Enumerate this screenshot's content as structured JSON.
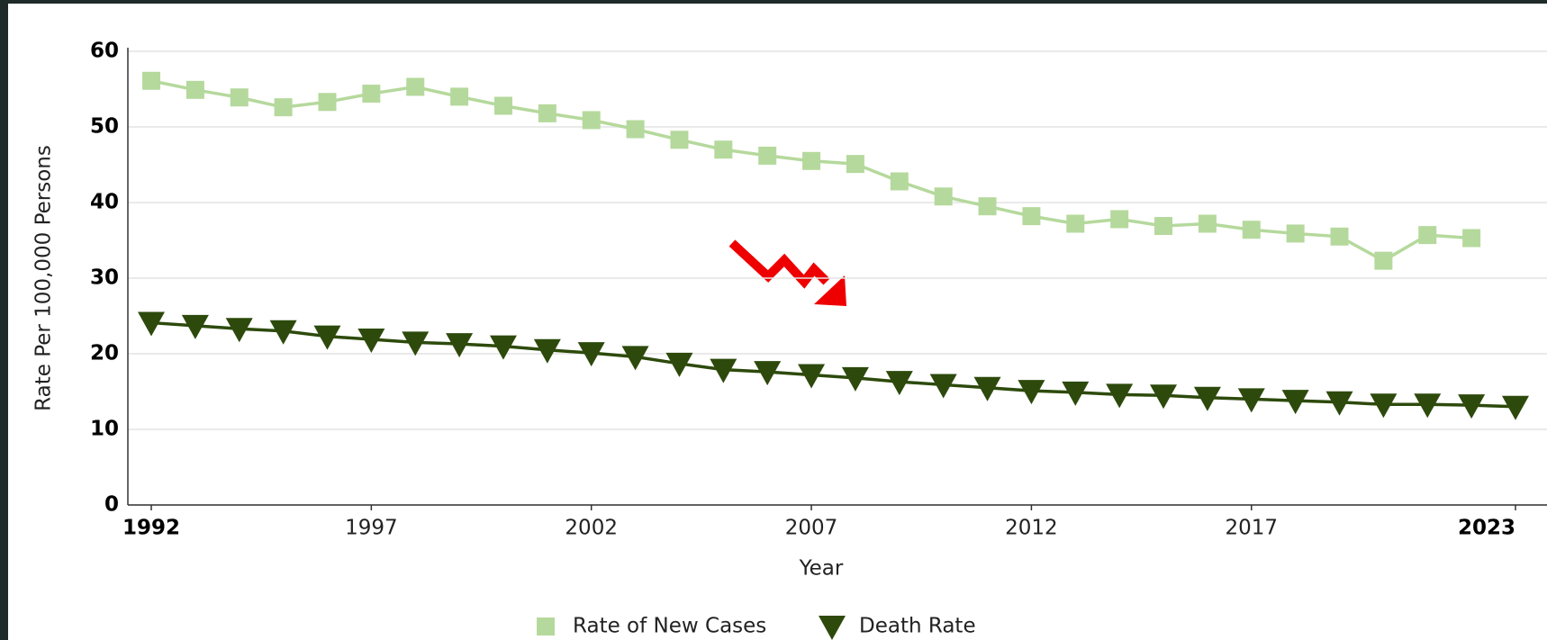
{
  "chart_data": {
    "type": "line",
    "x_label": "Year",
    "y_label": "Rate Per 100,000 Persons",
    "x": [
      1992,
      1993,
      1994,
      1995,
      1996,
      1997,
      1998,
      1999,
      2000,
      2001,
      2002,
      2003,
      2004,
      2005,
      2006,
      2007,
      2008,
      2009,
      2010,
      2011,
      2012,
      2013,
      2014,
      2015,
      2016,
      2017,
      2018,
      2019,
      2020,
      2021,
      2022,
      2023
    ],
    "xlim": [
      1992,
      2023
    ],
    "xticks": [
      1992,
      1997,
      2002,
      2007,
      2012,
      2017,
      2023
    ],
    "ylim": [
      0,
      60
    ],
    "yticks": [
      0,
      10,
      20,
      30,
      40,
      50,
      60
    ],
    "grid": true,
    "legend": "bottom",
    "series": [
      {
        "name": "Rate of New Cases",
        "color": "#b5d99c",
        "marker": "square",
        "values": [
          56.1,
          54.9,
          53.9,
          52.6,
          53.3,
          54.4,
          55.3,
          54.0,
          52.8,
          51.8,
          50.9,
          49.7,
          48.3,
          47.0,
          46.2,
          45.5,
          45.1,
          42.8,
          40.8,
          39.5,
          38.2,
          37.2,
          37.8,
          36.9,
          37.2,
          36.4,
          35.9,
          35.5,
          32.3,
          35.7,
          35.3,
          null
        ]
      },
      {
        "name": "Death Rate",
        "color": "#2d4a0c",
        "marker": "triangle-down",
        "values": [
          24.1,
          23.7,
          23.3,
          23.0,
          22.3,
          21.9,
          21.5,
          21.3,
          21.0,
          20.5,
          20.1,
          19.6,
          18.7,
          17.9,
          17.6,
          17.2,
          16.8,
          16.3,
          15.9,
          15.5,
          15.1,
          14.9,
          14.6,
          14.5,
          14.2,
          14.0,
          13.8,
          13.6,
          13.3,
          13.3,
          13.2,
          13.0
        ]
      }
    ]
  }
}
